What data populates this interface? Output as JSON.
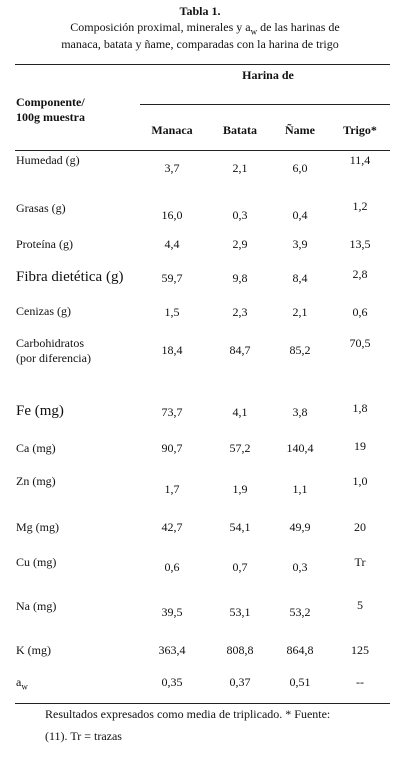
{
  "title": "Tabla 1.",
  "subtitle": {
    "before": "Composición proximal, minerales y a",
    "sub": "w",
    "after": " de las  harinas de",
    "line2": "manaca, batata y ñame, comparadas con la harina de trigo"
  },
  "table": {
    "row_header": [
      "Componente/",
      "100g muestra"
    ],
    "group_header": "Harina de",
    "columns": [
      "Manaca",
      "Batata",
      "Ñame",
      "Trigo*"
    ],
    "rows": [
      {
        "label": "Humedad (g)",
        "values": [
          "3,7",
          "2,1",
          "6,0",
          "11,4"
        ]
      },
      {
        "label": "Grasas (g)",
        "values": [
          "16,0",
          "0,3",
          "0,4",
          "1,2"
        ]
      },
      {
        "label": "Proteína (g)",
        "values": [
          "4,4",
          "2,9",
          "3,9",
          "13,5"
        ]
      },
      {
        "label": "Fibra dietética (g)",
        "values": [
          "59,7",
          "9,8",
          "8,4",
          "2,8"
        ]
      },
      {
        "label": "Cenizas (g)",
        "values": [
          "1,5",
          "2,3",
          "2,1",
          "0,6"
        ]
      },
      {
        "label": [
          "Carbohidratos",
          "(por diferencia)"
        ],
        "values": [
          "18,4",
          "84,7",
          "85,2",
          "70,5"
        ]
      },
      {
        "label": "Fe (mg)",
        "values": [
          "73,7",
          "4,1",
          "3,8",
          "1,8"
        ]
      },
      {
        "label": "Ca (mg)",
        "values": [
          "90,7",
          "57,2",
          "140,4",
          "19"
        ]
      },
      {
        "label": "Zn (mg)",
        "values": [
          "1,7",
          "1,9",
          "1,1",
          "1,0"
        ]
      },
      {
        "label": "Mg (mg)",
        "values": [
          "42,7",
          "54,1",
          "49,9",
          "20"
        ]
      },
      {
        "label": "Cu (mg)",
        "values": [
          "0,6",
          "0,7",
          "0,3",
          "Tr"
        ]
      },
      {
        "label": "Na (mg)",
        "values": [
          "39,5",
          "53,1",
          "53,2",
          "5"
        ]
      },
      {
        "label": "K (mg)",
        "values": [
          "363,4",
          "808,8",
          "864,8",
          "125"
        ]
      },
      {
        "label": "a",
        "sub": "w",
        "values": [
          "0,35",
          "0,37",
          "0,51",
          "--"
        ]
      }
    ]
  },
  "footnote": [
    "Resultados expresados como media de triplicado. * Fuente:",
    "(11). Tr = trazas"
  ]
}
